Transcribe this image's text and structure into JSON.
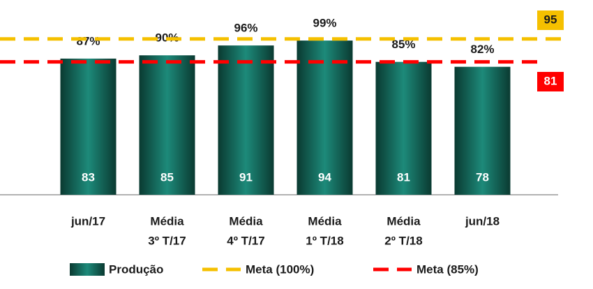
{
  "chart_data": {
    "type": "bar",
    "categories": [
      [
        "jun/17"
      ],
      [
        "Média",
        "3º T/17"
      ],
      [
        "Média",
        "4º T/17"
      ],
      [
        "Média",
        "1º T/18"
      ],
      [
        "Média",
        "2º T/18"
      ],
      [
        "jun/18"
      ]
    ],
    "series": [
      {
        "name": "Produção",
        "values": [
          83,
          85,
          91,
          94,
          81,
          78
        ]
      }
    ],
    "percent_labels": [
      "87%",
      "90%",
      "96%",
      "99%",
      "85%",
      "82%"
    ],
    "lines": [
      {
        "name": "Meta (100%)",
        "color": "#f5c000",
        "value": 95
      },
      {
        "name": "Meta (85%)",
        "color": "#ff0000",
        "value": 81
      }
    ],
    "ylim": [
      0,
      100
    ]
  }
}
